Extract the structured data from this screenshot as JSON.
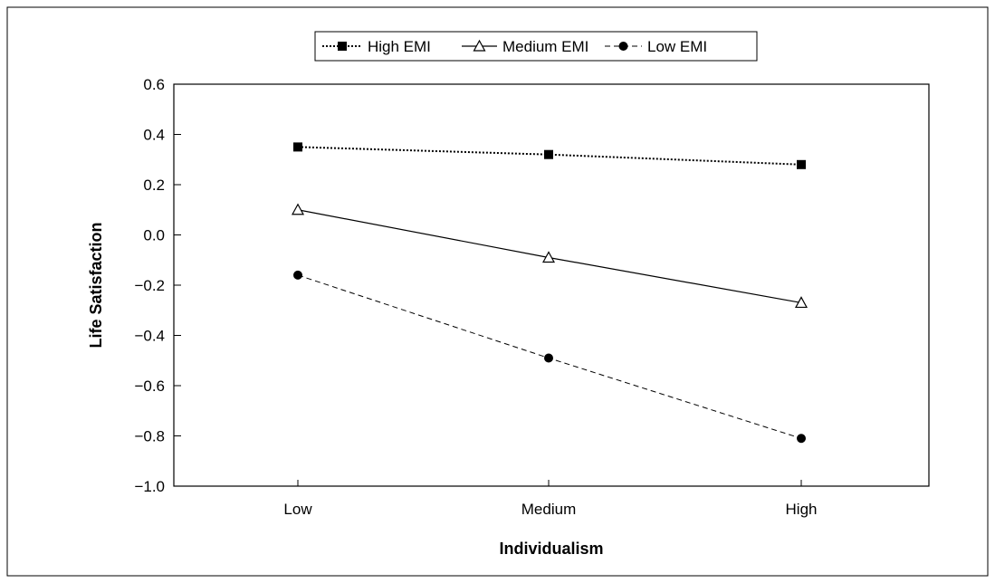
{
  "chart_data": {
    "type": "line",
    "title": "",
    "xlabel": "Individualism",
    "ylabel": "Life Satisfaction",
    "categories": [
      "Low",
      "Medium",
      "High"
    ],
    "ylim": [
      -1.0,
      0.6
    ],
    "yticks": [
      0.6,
      0.4,
      0.2,
      0.0,
      -0.2,
      -0.4,
      -0.6,
      -0.8,
      -1.0
    ],
    "ytick_labels": [
      "0.6",
      "0.4",
      "0.2",
      "0.0",
      "−0.2",
      "−0.4",
      "−0.6",
      "−0.8",
      "−1.0"
    ],
    "grid": false,
    "legend_position": "top-center",
    "series": [
      {
        "name": "High EMI",
        "values": [
          0.35,
          0.32,
          0.28
        ],
        "marker": "square",
        "line": "dotted",
        "color": "#000000"
      },
      {
        "name": "Medium EMI",
        "values": [
          0.1,
          -0.09,
          -0.27
        ],
        "marker": "open-triangle",
        "line": "solid",
        "color": "#000000"
      },
      {
        "name": "Low EMI",
        "values": [
          -0.16,
          -0.49,
          -0.81
        ],
        "marker": "circle",
        "line": "dashed",
        "color": "#000000"
      }
    ]
  }
}
